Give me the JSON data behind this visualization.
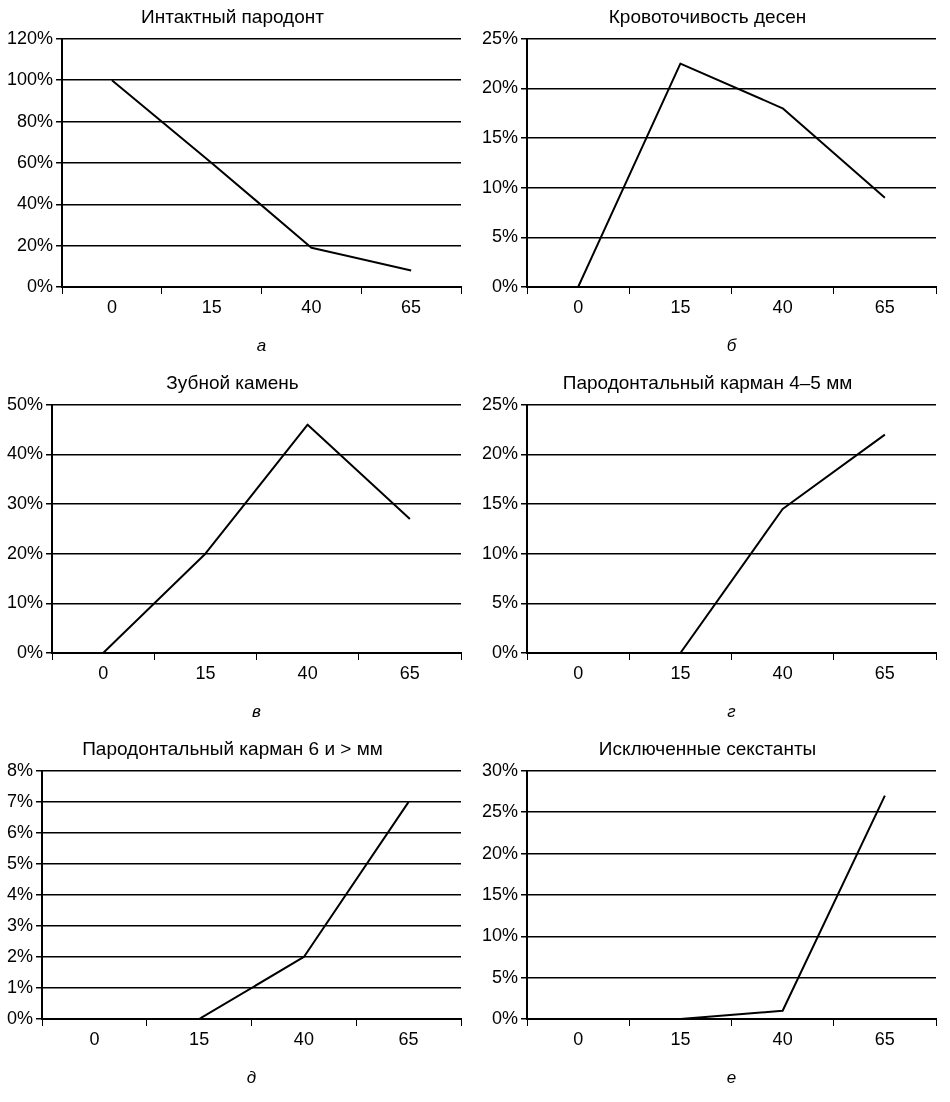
{
  "chart_data": [
    {
      "type": "line",
      "title": "Интактный пародонт",
      "xlabel": "а",
      "categories": [
        "0",
        "15",
        "40",
        "65"
      ],
      "values": [
        100,
        60,
        19,
        8
      ],
      "color": "#000000",
      "ylim": [
        0,
        120
      ],
      "yticks": [
        {
          "value": 0,
          "label": "0%"
        },
        {
          "value": 20,
          "label": "20%"
        },
        {
          "value": 40,
          "label": "40%"
        },
        {
          "value": 60,
          "label": "60%"
        },
        {
          "value": 80,
          "label": "80%"
        },
        {
          "value": 100,
          "label": "100%"
        },
        {
          "value": 120,
          "label": "120%"
        }
      ],
      "grid": "y",
      "marker": "none"
    },
    {
      "type": "line",
      "title": "Кровоточивость десен",
      "xlabel": "б",
      "categories": [
        "0",
        "15",
        "40",
        "65"
      ],
      "values": [
        0,
        22.5,
        18,
        9
      ],
      "color": "#000000",
      "ylim": [
        0,
        25
      ],
      "yticks": [
        {
          "value": 0,
          "label": "0%"
        },
        {
          "value": 5,
          "label": "5%"
        },
        {
          "value": 10,
          "label": "10%"
        },
        {
          "value": 15,
          "label": "15%"
        },
        {
          "value": 20,
          "label": "20%"
        },
        {
          "value": 25,
          "label": "25%"
        }
      ],
      "grid": "y",
      "marker": "none"
    },
    {
      "type": "line",
      "title": "Зубной камень",
      "xlabel": "в",
      "categories": [
        "0",
        "15",
        "40",
        "65"
      ],
      "values": [
        0,
        20,
        46,
        27
      ],
      "color": "#000000",
      "ylim": [
        0,
        50
      ],
      "yticks": [
        {
          "value": 0,
          "label": "0%"
        },
        {
          "value": 10,
          "label": "10%"
        },
        {
          "value": 20,
          "label": "20%"
        },
        {
          "value": 30,
          "label": "30%"
        },
        {
          "value": 40,
          "label": "40%"
        },
        {
          "value": 50,
          "label": "50%"
        }
      ],
      "grid": "y",
      "marker": "none"
    },
    {
      "type": "line",
      "title": "Пародонтальный карман 4–5 мм",
      "xlabel": "г",
      "categories": [
        "0",
        "15",
        "40",
        "65"
      ],
      "values": [
        0,
        0,
        14.5,
        22
      ],
      "color": "#000000",
      "ylim": [
        0,
        25
      ],
      "yticks": [
        {
          "value": 0,
          "label": "0%"
        },
        {
          "value": 5,
          "label": "5%"
        },
        {
          "value": 10,
          "label": "10%"
        },
        {
          "value": 15,
          "label": "15%"
        },
        {
          "value": 20,
          "label": "20%"
        },
        {
          "value": 25,
          "label": "25%"
        }
      ],
      "grid": "y",
      "marker": "none"
    },
    {
      "type": "line",
      "title": "Пародонтальный карман 6 и > мм",
      "xlabel": "д",
      "categories": [
        "0",
        "15",
        "40",
        "65"
      ],
      "values": [
        0,
        0,
        2,
        7
      ],
      "color": "#000000",
      "ylim": [
        0,
        8
      ],
      "yticks": [
        {
          "value": 0,
          "label": "0%"
        },
        {
          "value": 1,
          "label": "1%"
        },
        {
          "value": 2,
          "label": "2%"
        },
        {
          "value": 3,
          "label": "3%"
        },
        {
          "value": 4,
          "label": "4%"
        },
        {
          "value": 5,
          "label": "5%"
        },
        {
          "value": 6,
          "label": "6%"
        },
        {
          "value": 7,
          "label": "7%"
        },
        {
          "value": 8,
          "label": "8%"
        }
      ],
      "grid": "y",
      "marker": "none"
    },
    {
      "type": "line",
      "title": "Исключенные секстанты",
      "xlabel": "е",
      "categories": [
        "0",
        "15",
        "40",
        "65"
      ],
      "values": [
        0,
        0,
        1,
        27
      ],
      "color": "#000000",
      "ylim": [
        0,
        30
      ],
      "yticks": [
        {
          "value": 0,
          "label": "0%"
        },
        {
          "value": 5,
          "label": "5%"
        },
        {
          "value": 10,
          "label": "10%"
        },
        {
          "value": 15,
          "label": "15%"
        },
        {
          "value": 20,
          "label": "20%"
        },
        {
          "value": 25,
          "label": "25%"
        },
        {
          "value": 30,
          "label": "30%"
        }
      ],
      "grid": "y",
      "marker": "none"
    }
  ]
}
